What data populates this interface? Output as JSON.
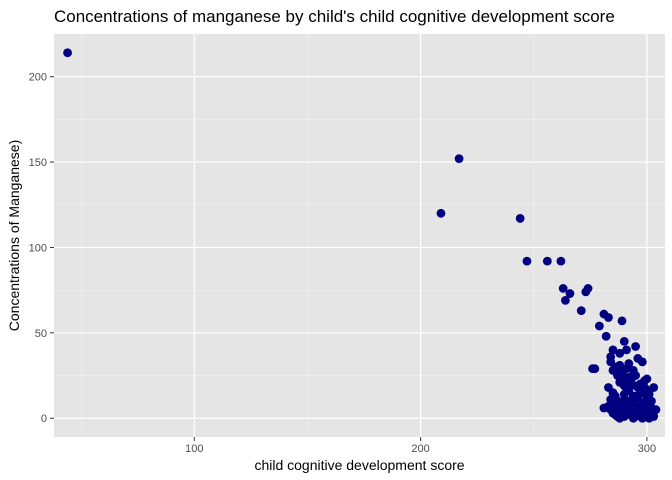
{
  "chart_data": {
    "type": "scatter",
    "title": "Concentrations of manganese by child's child cognitive development score",
    "xlabel": "child cognitive development score",
    "ylabel": "Concentrations of Manganese)",
    "xlim": [
      38,
      308
    ],
    "ylim": [
      -11,
      225
    ],
    "x_ticks": [
      100,
      200,
      300
    ],
    "y_ticks": [
      0,
      50,
      100,
      150,
      200
    ],
    "x_tick_labels": [
      "100",
      "200",
      "300"
    ],
    "y_tick_labels": [
      "0",
      "50",
      "100",
      "150",
      "200"
    ],
    "grid": true,
    "legend": "none",
    "colors": {
      "panel": "#e5e5e5",
      "grid_major": "#ffffff",
      "point": "#000080"
    },
    "x": [
      44,
      209,
      217,
      244,
      247,
      256,
      262,
      263,
      264,
      266,
      271,
      273,
      274,
      277,
      279,
      281,
      282,
      283,
      285,
      289,
      290,
      291,
      295,
      298,
      300,
      303,
      284,
      286,
      288,
      292,
      294,
      296,
      299,
      301,
      287,
      289,
      291,
      293,
      297,
      283,
      285,
      288,
      290,
      292,
      294,
      296,
      298,
      300,
      302,
      284,
      286,
      288,
      290,
      292,
      294,
      296,
      298,
      300,
      302,
      304,
      285,
      287,
      289,
      291,
      293,
      295,
      297,
      299,
      301,
      303,
      284,
      286,
      288,
      290,
      292,
      294,
      296,
      298,
      300,
      302,
      285,
      287,
      289,
      291,
      293,
      295,
      297,
      299,
      301,
      286,
      288,
      290,
      292,
      294,
      296,
      298,
      300,
      302,
      287,
      289,
      291,
      293,
      295,
      297,
      299,
      301,
      284,
      288,
      292,
      296,
      300,
      286,
      290,
      294,
      298,
      302,
      283,
      287,
      291,
      295,
      299,
      303,
      285,
      289,
      293,
      297,
      301,
      281,
      289,
      276
    ],
    "y": [
      214,
      120,
      152,
      117,
      92,
      92,
      92,
      76,
      69,
      73,
      63,
      74,
      76,
      29,
      54,
      61,
      48,
      59,
      40,
      57,
      45,
      40,
      42,
      33,
      23,
      18,
      36,
      30,
      38,
      32,
      28,
      35,
      22,
      14,
      26,
      24,
      20,
      22,
      17,
      18,
      15,
      21,
      19,
      16,
      13,
      18,
      15,
      12,
      10,
      11,
      13,
      9,
      14,
      10,
      8,
      12,
      9,
      7,
      6,
      5,
      8,
      10,
      6,
      9,
      5,
      7,
      4,
      6,
      3,
      4,
      5,
      7,
      3,
      6,
      4,
      2,
      5,
      3,
      2,
      1,
      3,
      1,
      4,
      2,
      3,
      1,
      2,
      1,
      0,
      2,
      0,
      1,
      3,
      0,
      2,
      0,
      1,
      2,
      25,
      27,
      29,
      23,
      25,
      20,
      18,
      16,
      33,
      31,
      24,
      19,
      14,
      12,
      11,
      9,
      8,
      6,
      7,
      5,
      4,
      3,
      2,
      1,
      28,
      26,
      19,
      15,
      10,
      6,
      3,
      29
    ]
  }
}
